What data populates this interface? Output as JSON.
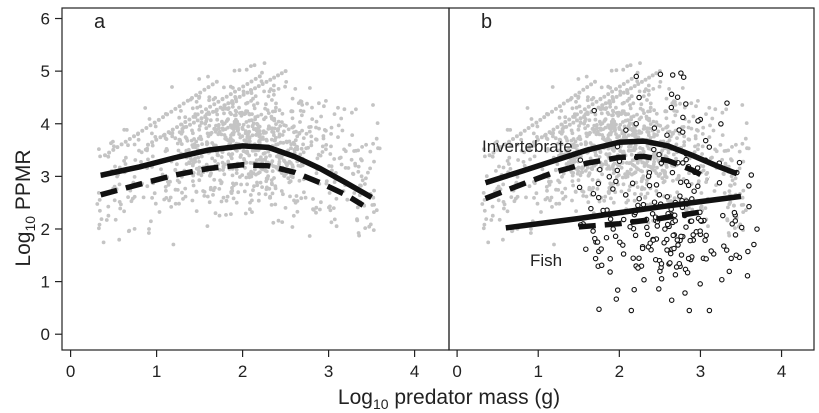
{
  "chart_data": {
    "type": "scatter",
    "x_axis": {
      "label_prefix": "Log",
      "label_sub": "10",
      "label_suffix": " predator mass (g)",
      "range": [
        -0.1,
        4.4
      ],
      "ticks": [
        0,
        1,
        2,
        3,
        4
      ]
    },
    "y_axis": {
      "label_prefix": "Log",
      "label_sub": "10",
      "label_suffix": " PPMR",
      "range": [
        -0.3,
        6.2
      ],
      "ticks": [
        0,
        1,
        2,
        3,
        4,
        5,
        6
      ]
    },
    "grid": false,
    "colors": {
      "points": "#c4c4c4",
      "fish_points": "#111111",
      "lines": "#111111"
    },
    "panels": [
      {
        "label": "a",
        "series": [
          {
            "style": "solid",
            "points": [
              [
                0.35,
                3.02
              ],
              [
                0.8,
                3.18
              ],
              [
                1.2,
                3.35
              ],
              [
                1.6,
                3.5
              ],
              [
                2.0,
                3.58
              ],
              [
                2.3,
                3.55
              ],
              [
                2.6,
                3.38
              ],
              [
                2.9,
                3.15
              ],
              [
                3.2,
                2.88
              ],
              [
                3.5,
                2.6
              ]
            ]
          },
          {
            "style": "dashed",
            "points": [
              [
                0.35,
                2.65
              ],
              [
                0.8,
                2.85
              ],
              [
                1.2,
                3.02
              ],
              [
                1.6,
                3.15
              ],
              [
                2.0,
                3.22
              ],
              [
                2.3,
                3.2
              ],
              [
                2.6,
                3.08
              ],
              [
                2.9,
                2.88
              ],
              [
                3.2,
                2.65
              ],
              [
                3.4,
                2.45
              ]
            ]
          }
        ]
      },
      {
        "label": "b",
        "annotations": [
          "Invertebrate",
          "Fish"
        ],
        "series": [
          {
            "style": "solid",
            "points": [
              [
                0.35,
                2.88
              ],
              [
                0.8,
                3.1
              ],
              [
                1.2,
                3.3
              ],
              [
                1.6,
                3.5
              ],
              [
                2.0,
                3.65
              ],
              [
                2.3,
                3.67
              ],
              [
                2.6,
                3.58
              ],
              [
                2.9,
                3.4
              ],
              [
                3.2,
                3.2
              ],
              [
                3.45,
                3.05
              ]
            ]
          },
          {
            "style": "dashed",
            "points": [
              [
                0.35,
                2.58
              ],
              [
                0.8,
                2.85
              ],
              [
                1.2,
                3.08
              ],
              [
                1.6,
                3.25
              ],
              [
                2.0,
                3.36
              ],
              [
                2.3,
                3.38
              ],
              [
                2.6,
                3.3
              ],
              [
                2.9,
                3.12
              ],
              [
                3.1,
                2.95
              ]
            ]
          },
          {
            "style": "solid",
            "points": [
              [
                0.6,
                2.02
              ],
              [
                1.5,
                2.2
              ],
              [
                2.5,
                2.42
              ],
              [
                3.5,
                2.62
              ]
            ]
          },
          {
            "style": "dashed",
            "points": [
              [
                1.5,
                2.04
              ],
              [
                2.0,
                2.1
              ],
              [
                2.5,
                2.2
              ],
              [
                3.0,
                2.32
              ]
            ]
          }
        ]
      }
    ]
  }
}
